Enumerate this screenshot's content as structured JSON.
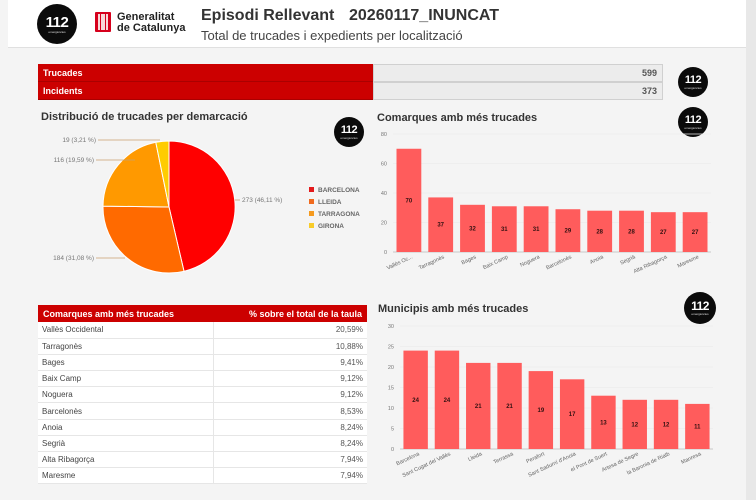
{
  "header": {
    "logo_number": "112",
    "logo_sub": "emergències",
    "gencat_line1": "Generalitat",
    "gencat_line2": "de Catalunya",
    "title": "Episodi Rellevant",
    "episode_id": "20260117_INUNCAT",
    "subtitle": "Total de trucades i expedients per localització"
  },
  "summary": {
    "rows": [
      {
        "label": "Trucades",
        "value": "599"
      },
      {
        "label": "Incidents",
        "value": "373"
      }
    ]
  },
  "pie_panel": {
    "title": "Distribució de trucades per demarcació",
    "labels": [
      "273 (46,11 %)",
      "184 (31,08 %)",
      "116 (19,59 %)",
      "19 (3,21 %)"
    ]
  },
  "comarques_panel": {
    "title": "Comarques amb més trucades"
  },
  "municipis_panel": {
    "title": "Municipis amb més trucades"
  },
  "table": {
    "headers": [
      "Comarques amb més trucades",
      "% sobre el total de la taula"
    ],
    "rows": [
      {
        "name": "Vallès Occidental",
        "pct": "20,59%"
      },
      {
        "name": "Tarragonès",
        "pct": "10,88%"
      },
      {
        "name": "Bages",
        "pct": "9,41%"
      },
      {
        "name": "Baix Camp",
        "pct": "9,12%"
      },
      {
        "name": "Noguera",
        "pct": "9,12%"
      },
      {
        "name": "Barcelonès",
        "pct": "8,53%"
      },
      {
        "name": "Anoia",
        "pct": "8,24%"
      },
      {
        "name": "Segrià",
        "pct": "8,24%"
      },
      {
        "name": "Alta Ribagorça",
        "pct": "7,94%"
      },
      {
        "name": "Maresme",
        "pct": "7,94%"
      }
    ]
  },
  "colors": {
    "brand_red": "#cc0000",
    "bar": "#ff5c5c",
    "barcelona": "#ff0000",
    "lleida": "#ff6a00",
    "tarragona": "#ff9900",
    "girona": "#ffcc00"
  },
  "chart_data": [
    {
      "type": "pie",
      "title": "Distribució de trucades per demarcació",
      "categories": [
        "BARCELONA",
        "LLEIDA",
        "TARRAGONA",
        "GIRONA"
      ],
      "values": [
        273,
        184,
        116,
        19
      ],
      "percentages": [
        46.11,
        31.08,
        19.59,
        3.21
      ],
      "colors": [
        "#ff0000",
        "#ff6a00",
        "#ff9900",
        "#ffcc00"
      ],
      "legend_position": "right"
    },
    {
      "type": "bar",
      "title": "Comarques amb més trucades",
      "categories": [
        "Vallès Oc...",
        "Tarragonès",
        "Bages",
        "Baix Camp",
        "Noguera",
        "Barcelonès",
        "Anoia",
        "Segrià",
        "Alta Ribagorça",
        "Maresme"
      ],
      "values": [
        70,
        37,
        32,
        31,
        31,
        29,
        28,
        28,
        27,
        27
      ],
      "ylim": [
        0,
        80
      ],
      "yticks": [
        0,
        20,
        40,
        60,
        80
      ],
      "xlabel": "",
      "ylabel": "",
      "grid": true
    },
    {
      "type": "bar",
      "title": "Municipis amb més trucades",
      "categories": [
        "Barcelona",
        "Sant Cugat del Vallès",
        "Lleida",
        "Terrassa",
        "Perafort",
        "Sant Sadurní d'Anoia",
        "el Pont de Suert",
        "Artesa de Segre",
        "la Baronia de Rialb",
        "Manresa"
      ],
      "values": [
        24,
        24,
        21,
        21,
        19,
        17,
        13,
        12,
        12,
        11
      ],
      "ylim": [
        0,
        30
      ],
      "yticks": [
        0,
        5,
        10,
        15,
        20,
        25,
        30
      ],
      "xlabel": "",
      "ylabel": "",
      "grid": true
    }
  ]
}
